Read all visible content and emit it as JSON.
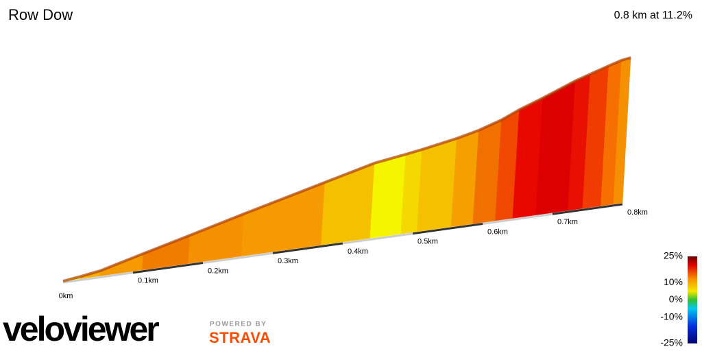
{
  "chart_data": {
    "type": "profile3d",
    "title": "Row Dow",
    "subtitle": "0.8 km at 11.2%",
    "x": [
      0,
      0.025,
      0.052,
      0.113,
      0.179,
      0.255,
      0.369,
      0.439,
      0.483,
      0.506,
      0.555,
      0.586,
      0.618,
      0.643,
      0.676,
      0.722,
      0.743,
      0.769,
      0.787,
      0.8
    ],
    "elevation": [
      0,
      1.4,
      3.2,
      10.2,
      17.6,
      26.3,
      38.9,
      46.6,
      49.4,
      51,
      54.9,
      58.1,
      62.6,
      67.4,
      72.6,
      80.5,
      83.4,
      87,
      89.3,
      90.2
    ],
    "segment_colors": [
      "#e8e400",
      "#f5b000",
      "#f59a00",
      "#f07c00",
      "#f59000",
      "#f59a00",
      "#f5c000",
      "#f5f500",
      "#f5d800",
      "#f5c000",
      "#f5a000",
      "#f07000",
      "#f04800",
      "#e80800",
      "#dc0000",
      "#e81000",
      "#f03c00",
      "#f57000",
      "#f59000"
    ],
    "xlim": [
      0,
      0.8
    ],
    "xticks": [
      {
        "value": 0,
        "label": "0km"
      },
      {
        "value": 0.1,
        "label": "0.1km"
      },
      {
        "value": 0.2,
        "label": "0.2km"
      },
      {
        "value": 0.3,
        "label": "0.3km"
      },
      {
        "value": 0.4,
        "label": "0.4km"
      },
      {
        "value": 0.5,
        "label": "0.5km"
      },
      {
        "value": 0.6,
        "label": "0.6km"
      },
      {
        "value": 0.7,
        "label": "0.7km"
      },
      {
        "value": 0.8,
        "label": "0.8km"
      }
    ],
    "colorbar": {
      "ylim": [
        -25,
        25
      ],
      "yticks": [
        {
          "value": 25,
          "label": "25%"
        },
        {
          "value": 10,
          "label": "10%"
        },
        {
          "value": 0,
          "label": "0%"
        },
        {
          "value": -10,
          "label": "-10%"
        },
        {
          "value": -25,
          "label": "-25%"
        }
      ]
    }
  },
  "branding": {
    "logo": "veloviewer",
    "powered_by": "POWERED BY",
    "partner": "STRAVA"
  }
}
